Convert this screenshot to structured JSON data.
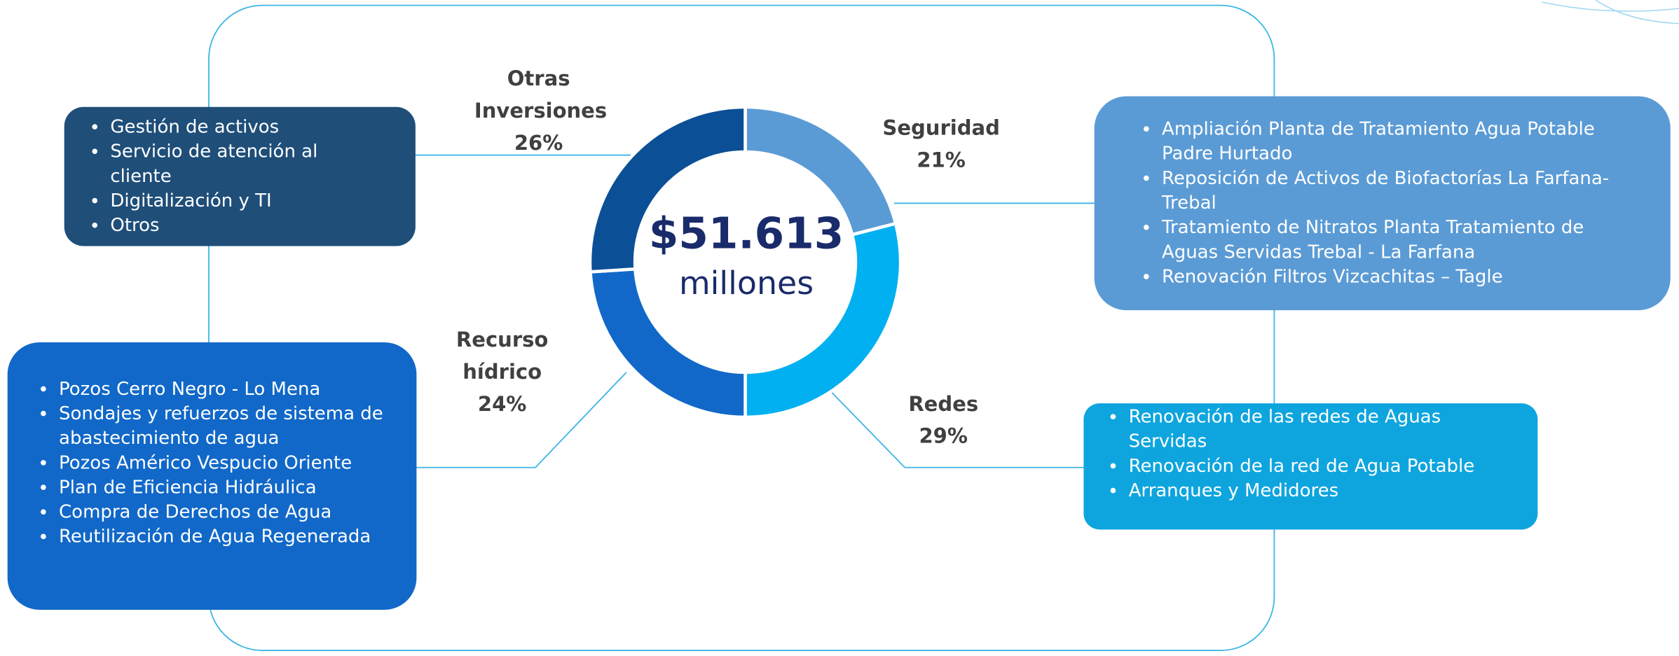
{
  "chart_data": {
    "type": "donut",
    "center_value": "$51.613",
    "center_label": "millones",
    "categories": [
      "Seguridad",
      "Redes",
      "Recurso hídrico",
      "Otras Inversiones"
    ],
    "values": [
      21,
      29,
      24,
      26
    ],
    "value_labels": [
      "21%",
      "29%",
      "24%",
      "26%"
    ],
    "colors": [
      "#5b9bd5",
      "#00b0f0",
      "#1168c8",
      "#0b4f96"
    ]
  },
  "boxes": [
    {
      "items": [
        "Ampliación Planta de Tratamiento Agua Potable Padre Hurtado",
        "Reposición de Activos de Biofactorías La Farfana-Trebal",
        "Tratamiento de Nitratos Planta Tratamiento de Aguas Servidas Trebal - La Farfana",
        "Renovación Filtros Vizcachitas – Tagle"
      ]
    },
    {
      "items": [
        "Renovación de las redes de Aguas Servidas",
        "Renovación de la red de Agua Potable",
        "Arranques y Medidores"
      ]
    },
    {
      "items": [
        "Pozos Cerro Negro - Lo Mena",
        "Sondajes y refuerzos de sistema de abastecimiento de agua",
        "Pozos Américo Vespucio Oriente",
        "Plan de Eficiencia Hidráulica",
        "Compra de Derechos de Agua",
        "Reutilización de Agua Regenerada"
      ]
    },
    {
      "items": [
        "Gestión de activos",
        "Servicio de atención al cliente",
        "Digitalización y TI",
        "Otros"
      ]
    }
  ]
}
